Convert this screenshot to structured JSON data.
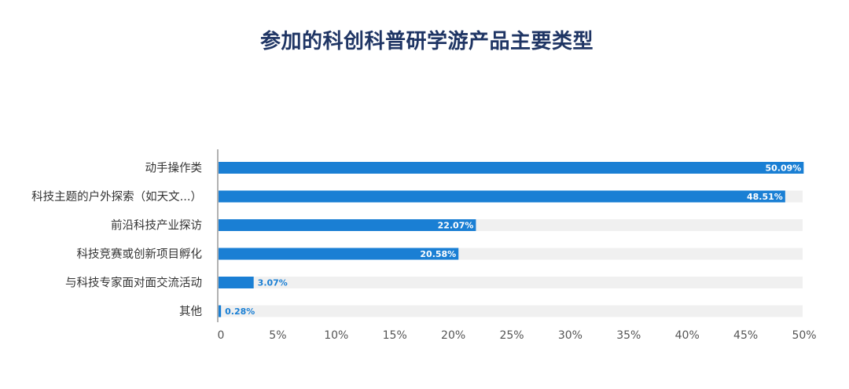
{
  "chart_data": {
    "type": "bar",
    "orientation": "horizontal",
    "title": "参加的科创科普研学游产品主要类型",
    "categories": [
      "动手操作类",
      "科技主题的户外探索（如天文...）",
      "前沿科技产业探访",
      "科技竞赛或创新项目孵化",
      "与科技专家面对面交流活动",
      "其他"
    ],
    "values": [
      50.09,
      48.51,
      22.07,
      20.58,
      3.07,
      0.28
    ],
    "data_labels": [
      "50.09%",
      "48.51%",
      "22.07%",
      "20.58%",
      "3.07%",
      "0.28%"
    ],
    "x_ticks": [
      "0",
      "5%",
      "10%",
      "15%",
      "20%",
      "25%",
      "30%",
      "35%",
      "40%",
      "45%",
      "50%"
    ],
    "xlim": [
      0,
      50
    ],
    "grid": false,
    "legend": "none",
    "colors": {
      "bar": "#1a7fd4",
      "track": "#f0f0f0",
      "axis": "#999999",
      "title": "#1f3564",
      "label_inside": "#ffffff",
      "label_outside": "#1a7fd4"
    }
  }
}
